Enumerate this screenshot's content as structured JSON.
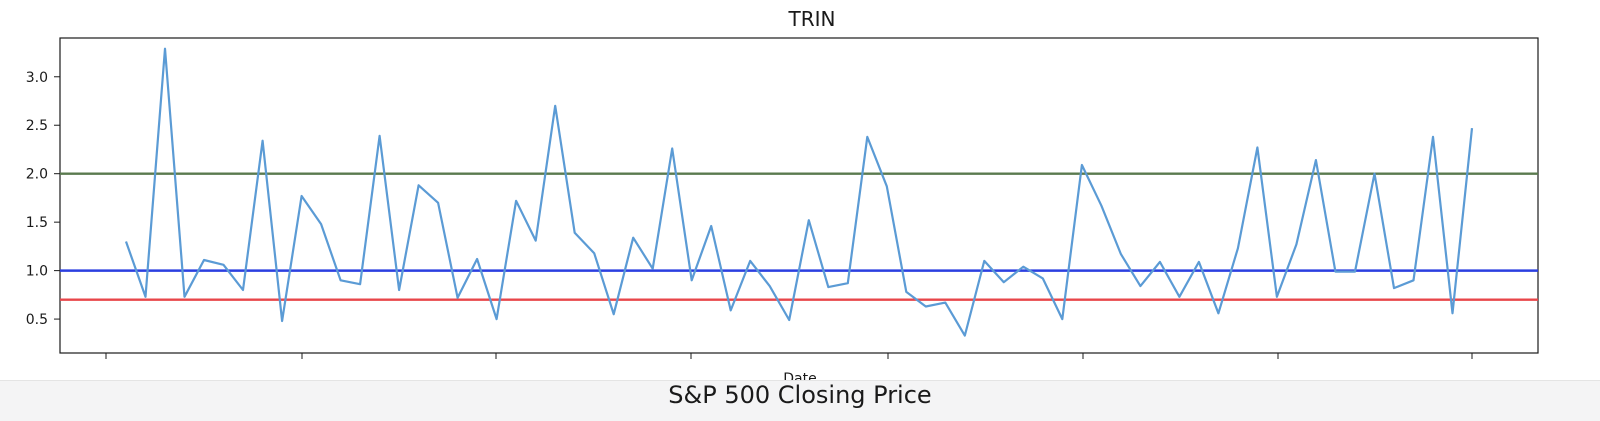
{
  "chart_data": {
    "type": "line",
    "title": "TRIN",
    "xlabel": "Date",
    "ylabel": "",
    "ylim": [
      0.15,
      3.4
    ],
    "yticks": [
      "0.5",
      "1.0",
      "1.5",
      "2.0",
      "2.5",
      "3.0"
    ],
    "grid": false,
    "series": [
      {
        "color": "#5b9bd5",
        "values": [
          1.3,
          0.73,
          3.29,
          0.73,
          1.11,
          1.06,
          0.8,
          2.34,
          0.48,
          1.77,
          1.48,
          0.9,
          0.86,
          2.39,
          0.8,
          1.88,
          1.7,
          0.72,
          1.12,
          0.5,
          1.72,
          1.31,
          2.7,
          1.39,
          1.18,
          0.55,
          1.34,
          1.02,
          2.26,
          0.9,
          1.46,
          0.59,
          1.1,
          0.84,
          0.49,
          1.52,
          0.83,
          0.87,
          2.38,
          1.87,
          0.78,
          0.63,
          0.67,
          0.33,
          1.1,
          0.88,
          1.04,
          0.92,
          0.5,
          2.09,
          1.67,
          1.17,
          0.84,
          1.09,
          0.73,
          1.09,
          0.56,
          1.23,
          2.27,
          0.73,
          1.27,
          2.14,
          0.99,
          0.99,
          2.0,
          0.82,
          0.9,
          2.38,
          0.56,
          2.47
        ]
      }
    ],
    "reference_lines": [
      {
        "y": 2.0,
        "color": "#5a7a4e"
      },
      {
        "y": 1.0,
        "color": "#2b3fe0"
      },
      {
        "y": 0.7,
        "color": "#e8464a"
      }
    ]
  },
  "next_chart": {
    "title": "S&P 500 Closing Price"
  }
}
